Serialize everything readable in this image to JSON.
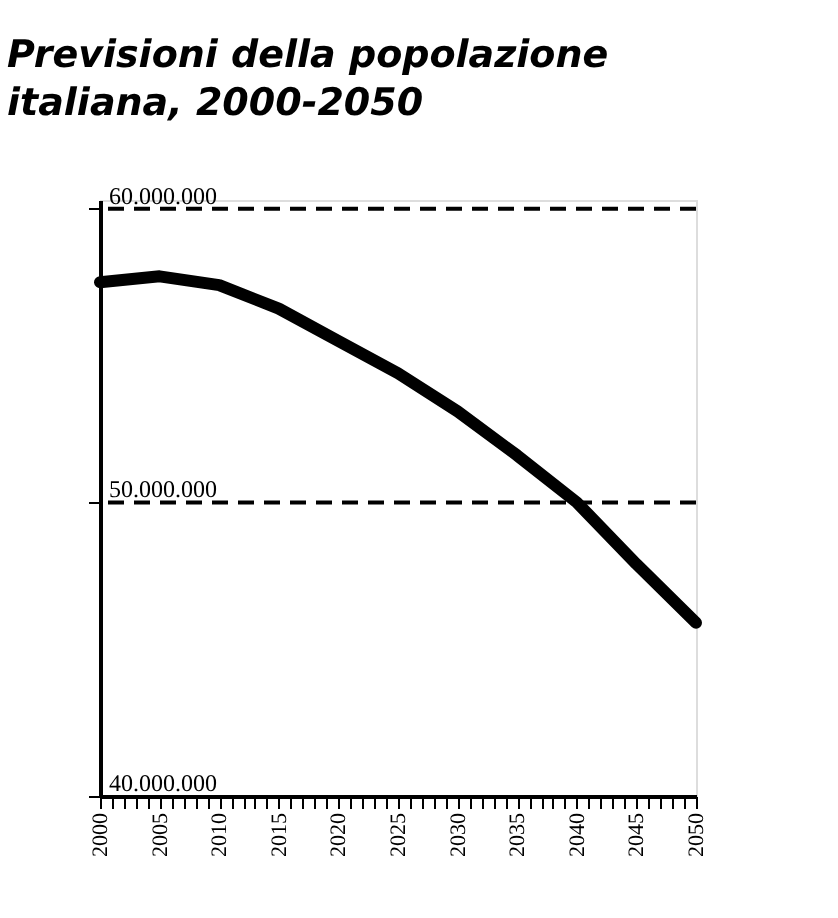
{
  "chart_data": {
    "type": "line",
    "title": "Previsioni della popolazione italiana, 2000-2050",
    "x": [
      2000,
      2005,
      2010,
      2015,
      2020,
      2025,
      2030,
      2035,
      2040,
      2045,
      2050
    ],
    "series": [
      {
        "color": "#000000",
        "values": [
          57500000,
          57700000,
          57400000,
          56600000,
          55500000,
          54400000,
          53100000,
          51600000,
          50000000,
          47900000,
          45900000
        ]
      }
    ],
    "xlim": [
      2000,
      2050
    ],
    "xticks": [
      2000,
      {
        "value": 2001,
        "label": null
      },
      {
        "value": 2002,
        "label": null
      },
      {
        "value": 2003,
        "label": null
      },
      {
        "value": 2004,
        "label": null
      },
      2005,
      {
        "value": 2006,
        "label": null
      },
      {
        "value": 2007,
        "label": null
      },
      {
        "value": 2008,
        "label": null
      },
      {
        "value": 2009,
        "label": null
      },
      2010,
      {
        "value": 2011,
        "label": null
      },
      {
        "value": 2012,
        "label": null
      },
      {
        "value": 2013,
        "label": null
      },
      {
        "value": 2014,
        "label": null
      },
      2015,
      {
        "value": 2016,
        "label": null
      },
      {
        "value": 2017,
        "label": null
      },
      {
        "value": 2018,
        "label": null
      },
      {
        "value": 2019,
        "label": null
      },
      2020,
      {
        "value": 2021,
        "label": null
      },
      {
        "value": 2022,
        "label": null
      },
      {
        "value": 2023,
        "label": null
      },
      {
        "value": 2024,
        "label": null
      },
      2025,
      {
        "value": 2026,
        "label": null
      },
      {
        "value": 2027,
        "label": null
      },
      {
        "value": 2028,
        "label": null
      },
      {
        "value": 2029,
        "label": null
      },
      2030,
      {
        "value": 2031,
        "label": null
      },
      {
        "value": 2032,
        "label": null
      },
      {
        "value": 2033,
        "label": null
      },
      {
        "value": 2034,
        "label": null
      },
      2035,
      {
        "value": 2036,
        "label": null
      },
      {
        "value": 2037,
        "label": null
      },
      {
        "value": 2038,
        "label": null
      },
      {
        "value": 2039,
        "label": null
      },
      2040,
      {
        "value": 2041,
        "label": null
      },
      {
        "value": 2042,
        "label": null
      },
      {
        "value": 2043,
        "label": null
      },
      {
        "value": 2044,
        "label": null
      },
      2045,
      {
        "value": 2046,
        "label": null
      },
      {
        "value": 2047,
        "label": null
      },
      {
        "value": 2048,
        "label": null
      },
      {
        "value": 2049,
        "label": null
      },
      2050
    ],
    "ylim": [
      40000000,
      60300000
    ],
    "yticks": [
      {
        "value": 40000000,
        "label": "40.000.000"
      },
      {
        "value": 50000000,
        "label": "50.000.000"
      },
      {
        "value": 60000000,
        "label": "60.000.000"
      }
    ],
    "ref_lines": [
      {
        "axis": "y",
        "value": 60000000,
        "line_style": "dashed",
        "color": "#000000"
      },
      {
        "axis": "y",
        "value": 50000000,
        "line_style": "dashed",
        "color": "#000000"
      }
    ],
    "line_style": "solid"
  }
}
